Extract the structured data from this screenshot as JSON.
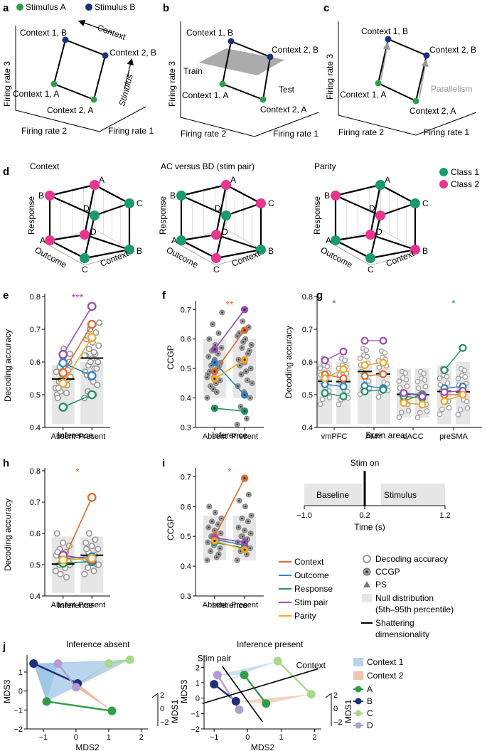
{
  "panels": {
    "a": "a",
    "b": "b",
    "c": "c",
    "d": "d",
    "e": "e",
    "f": "f",
    "g": "g",
    "h": "h",
    "i": "i",
    "j": "j"
  },
  "colors": {
    "stimA": "#2e9e48",
    "stimB": "#1f2f7a",
    "class1": "#1a9a70",
    "class2": "#e8358f",
    "context": "#e06a2f",
    "outcome": "#2f83c4",
    "response": "#1e9464",
    "stimpair": "#9b4fb5",
    "parity": "#f5a623",
    "null": "#e6e6e6",
    "grey": "#9a9a9a",
    "planeFill": "#9c9c9c",
    "ctx1": "#b9d4ec",
    "ctx2": "#f1c3b2",
    "jA": "#2e9e48",
    "jB": "#1f2f7a",
    "jC": "#a8d88a",
    "jD": "#b39bd6"
  },
  "panel_a": {
    "legend": [
      "Stimulus A",
      "Stimulus B"
    ],
    "points": [
      "Context 1, B",
      "Context 2, B",
      "Context 1, A",
      "Context 2, A"
    ],
    "arrows": [
      "Context",
      "Stimulus"
    ],
    "axes": [
      "Firing rate 3",
      "Firing rate 2",
      "Firing rate 1"
    ]
  },
  "panel_b": {
    "points": [
      "Context 1, B",
      "Context 2, B",
      "Context 1, A",
      "Context 2, A"
    ],
    "train": "Train",
    "test": "Test",
    "axes": [
      "Firing rate 3",
      "Firing rate 2",
      "Firing rate 1"
    ]
  },
  "panel_c": {
    "points": [
      "Context 1, B",
      "Context 2, B",
      "Context 1, A",
      "Context 2, A"
    ],
    "parallelism": "Parallelism",
    "axes": [
      "Firing rate 3",
      "Firing rate 2",
      "Firing rate 1"
    ]
  },
  "panel_d": {
    "titles": [
      "Context",
      "AC versus BD (stim pair)",
      "Parity"
    ],
    "legend": [
      "Class 1",
      "Class 2"
    ],
    "vertices": [
      "A",
      "B",
      "C",
      "D",
      "A",
      "B",
      "C",
      "D"
    ],
    "axes": [
      "Response",
      "Outcome",
      "Context"
    ],
    "classes": [
      [
        2,
        2,
        1,
        1,
        2,
        1,
        1,
        2
      ],
      [
        2,
        1,
        2,
        1,
        1,
        1,
        2,
        2
      ],
      [
        1,
        2,
        1,
        2,
        1,
        2,
        1,
        2
      ]
    ]
  },
  "panel_e": {
    "ylabel": "Decoding accuracy",
    "xlabel": "Inference",
    "xticks": [
      "Absent",
      "Present"
    ],
    "yticks": [
      "0.4",
      "0.5",
      "0.6",
      "0.7",
      "0.8"
    ],
    "ylim": [
      0.4,
      0.8
    ],
    "star": "***",
    "null": [
      [
        0.41,
        0.59
      ],
      [
        0.41,
        0.6
      ]
    ],
    "sd": [
      0.548,
      0.612
    ],
    "vars": [
      [
        "context",
        0.567,
        0.715
      ],
      [
        "outcome",
        0.597,
        0.558
      ],
      [
        "response",
        0.462,
        0.5
      ],
      [
        "stimpair",
        0.623,
        0.77
      ],
      [
        "parity",
        0.535,
        0.675
      ]
    ],
    "greyA": [
      0.52,
      0.53,
      0.54,
      0.55,
      0.56,
      0.57,
      0.58,
      0.585,
      0.6,
      0.61,
      0.5,
      0.505,
      0.51,
      0.625,
      0.64,
      0.49,
      0.53,
      0.545,
      0.555,
      0.565,
      0.52,
      0.575,
      0.595
    ],
    "greyP": [
      0.49,
      0.5,
      0.51,
      0.53,
      0.55,
      0.57,
      0.58,
      0.59,
      0.6,
      0.61,
      0.62,
      0.625,
      0.64,
      0.65,
      0.66,
      0.67,
      0.69,
      0.7,
      0.72,
      0.54,
      0.56,
      0.58,
      0.6,
      0.62,
      0.63,
      0.68
    ]
  },
  "panel_f": {
    "ylabel": "CCGP",
    "xlabel": "Inference",
    "xticks": [
      "Absent",
      "Present"
    ],
    "yticks": [
      "0.3",
      "0.4",
      "0.5",
      "0.6",
      "0.7"
    ],
    "ylim": [
      0.3,
      0.72
    ],
    "star": "**",
    "null": [
      [
        0.4,
        0.6
      ],
      [
        0.4,
        0.6
      ]
    ],
    "vars": [
      [
        "context",
        0.49,
        0.63
      ],
      [
        "outcome",
        0.52,
        0.41
      ],
      [
        "response",
        0.365,
        0.355
      ],
      [
        "stimpair",
        0.565,
        0.7
      ],
      [
        "parity",
        0.465,
        0.53
      ]
    ],
    "greyA": [
      0.4,
      0.42,
      0.44,
      0.46,
      0.47,
      0.48,
      0.5,
      0.51,
      0.52,
      0.53,
      0.54,
      0.55,
      0.56,
      0.57,
      0.58,
      0.6,
      0.62,
      0.65,
      0.69,
      0.45,
      0.49,
      0.51,
      0.43,
      0.47
    ],
    "greyP": [
      0.31,
      0.33,
      0.37,
      0.4,
      0.42,
      0.44,
      0.46,
      0.48,
      0.5,
      0.52,
      0.53,
      0.55,
      0.57,
      0.58,
      0.6,
      0.62,
      0.64,
      0.66,
      0.45,
      0.49,
      0.51,
      0.56,
      0.59,
      0.61
    ]
  },
  "panel_g": {
    "ylabel": "Decoding accuracy",
    "xlabel": "Brain area",
    "areas": [
      "vmPFC",
      "AMY",
      "dACC",
      "preSMA"
    ],
    "yticks": [
      "0.4",
      "0.5",
      "0.6",
      "0.7",
      "0.8"
    ],
    "ylim": [
      0.4,
      0.8
    ],
    "stars": [
      "*",
      "",
      "",
      "*"
    ],
    "null": [
      [
        0.41,
        0.6
      ],
      [
        0.41,
        0.6
      ],
      [
        0.41,
        0.59
      ],
      [
        0.41,
        0.59
      ],
      [
        0.43,
        0.58
      ],
      [
        0.43,
        0.58
      ],
      [
        0.41,
        0.59
      ],
      [
        0.41,
        0.6
      ]
    ],
    "sd": [
      0.541,
      0.54,
      0.571,
      0.563,
      0.501,
      0.5,
      0.51,
      0.509
    ],
    "vars": [
      [
        "context",
        [
          0.562,
          0.55
        ],
        [
          0.557,
          0.563
        ],
        [
          0.48,
          0.502
        ],
        [
          0.5,
          0.5
        ]
      ],
      [
        "outcome",
        [
          0.532,
          0.525
        ],
        [
          0.527,
          0.52
        ],
        [
          0.505,
          0.5
        ],
        [
          0.52,
          0.525
        ]
      ],
      [
        "response",
        [
          0.505,
          0.495
        ],
        [
          0.51,
          0.515
        ],
        [
          0.495,
          0.49
        ],
        [
          0.575,
          0.643
        ]
      ],
      [
        "stimpair",
        [
          0.605,
          0.632
        ],
        [
          0.665,
          0.665
        ],
        [
          0.505,
          0.495
        ],
        [
          0.508,
          0.512
        ]
      ],
      [
        "parity",
        [
          0.55,
          0.578
        ],
        [
          0.59,
          0.598
        ],
        [
          0.475,
          0.47
        ],
        [
          0.48,
          0.5
        ]
      ]
    ]
  },
  "panel_h": {
    "ylabel": "Decoding accuracy",
    "xlabel": "Inference",
    "xticks": [
      "Absent",
      "Present"
    ],
    "yticks": [
      "0.4",
      "0.5",
      "0.6",
      "0.7",
      "0.8"
    ],
    "ylim": [
      0.4,
      0.8
    ],
    "star": "*",
    "null": [
      [
        0.41,
        0.59
      ],
      [
        0.41,
        0.59
      ]
    ],
    "sd": [
      0.502,
      0.53
    ],
    "vars": [
      [
        "context",
        0.512,
        0.715
      ],
      [
        "outcome",
        0.52,
        0.525
      ],
      [
        "response",
        0.505,
        0.51
      ],
      [
        "stimpair",
        0.53,
        0.515
      ],
      [
        "parity",
        0.515,
        0.52
      ]
    ],
    "greyA": [
      0.48,
      0.49,
      0.5,
      0.51,
      0.52,
      0.53,
      0.54,
      0.55,
      0.56,
      0.57,
      0.6,
      0.46,
      0.47,
      0.5,
      0.52,
      0.54
    ],
    "greyP": [
      0.47,
      0.48,
      0.49,
      0.5,
      0.51,
      0.52,
      0.53,
      0.54,
      0.55,
      0.56,
      0.57,
      0.58,
      0.6,
      0.5,
      0.52,
      0.55
    ]
  },
  "panel_i": {
    "ylabel": "CCGP",
    "xlabel": "Inference",
    "xticks": [
      "Absent",
      "Present"
    ],
    "yticks": [
      "0.3",
      "0.4",
      "0.5",
      "0.6",
      "0.7"
    ],
    "ylim": [
      0.3,
      0.72
    ],
    "star": "*",
    "null": [
      [
        0.42,
        0.57
      ],
      [
        0.42,
        0.57
      ]
    ],
    "vars": [
      [
        "context",
        0.5,
        0.695
      ],
      [
        "outcome",
        0.49,
        0.47
      ],
      [
        "response",
        0.48,
        0.46
      ],
      [
        "stimpair",
        0.495,
        0.48
      ],
      [
        "parity",
        0.485,
        0.455
      ]
    ],
    "greyA": [
      0.42,
      0.43,
      0.45,
      0.46,
      0.47,
      0.48,
      0.49,
      0.5,
      0.51,
      0.52,
      0.53,
      0.54,
      0.55,
      0.56,
      0.58,
      0.6,
      0.44,
      0.5
    ],
    "greyP": [
      0.42,
      0.44,
      0.45,
      0.46,
      0.47,
      0.48,
      0.49,
      0.5,
      0.51,
      0.52,
      0.53,
      0.55,
      0.56,
      0.57,
      0.6,
      0.62,
      0.64,
      0.5
    ]
  },
  "timeline": {
    "stim_on": "Stim on",
    "baseline": "Baseline",
    "stimulus": "Stimulus",
    "xlabel": "Time (s)",
    "ticks": [
      "−1.0",
      "0.2",
      "1.2"
    ]
  },
  "legend_vars": [
    "Context",
    "Outcome",
    "Response",
    "Stim pair",
    "Parity"
  ],
  "legend_marks": [
    "Decoding accuracy",
    "CCGP",
    "PS",
    "Null distribution",
    "(5th–95th percentile)",
    "Shattering",
    "dimensionality"
  ],
  "panel_j": {
    "titles": [
      "Inference absent",
      "Inference present"
    ],
    "xlabel": "MDS2",
    "ylabel": "MDS3",
    "zlabel": "MDS1",
    "ticks_left_x": [
      "−1",
      "0",
      "1",
      "2"
    ],
    "ticks_left_y": [
      "1",
      "0",
      "−1",
      "−2"
    ],
    "ticks_right_x": [
      "−1",
      "0",
      "1",
      "2"
    ],
    "ticks_right_y": [
      "2",
      "1",
      "0",
      "−1",
      "−2"
    ],
    "z_ticks": [
      "2",
      "0",
      "−2"
    ],
    "stim_pair": "Stim pair",
    "context": "Context",
    "legend": [
      "Context 1",
      "Context 2",
      "A",
      "B",
      "C",
      "D"
    ],
    "left_points": {
      "A": [
        -0.9,
        -0.55
      ],
      "B": [
        -1.3,
        1.45
      ],
      "C": [
        1.65,
        1.65
      ],
      "D": [
        -0.55,
        1.45
      ],
      "A2": [
        1.1,
        -1.05
      ],
      "B2": [
        0.05,
        0.4
      ],
      "C2": [
        1.0,
        1.45
      ],
      "D2": [
        0.0,
        0.2
      ]
    },
    "right_points": {
      "A": [
        -0.1,
        1.5
      ],
      "B": [
        -1.0,
        0.9
      ],
      "C": [
        0.9,
        2.4
      ],
      "D": [
        -0.9,
        1.5
      ],
      "A2": [
        0.55,
        -0.35
      ],
      "B2": [
        -0.35,
        -0.2
      ],
      "C2": [
        1.9,
        0.25
      ],
      "D2": [
        -0.25,
        -0.75
      ]
    }
  }
}
